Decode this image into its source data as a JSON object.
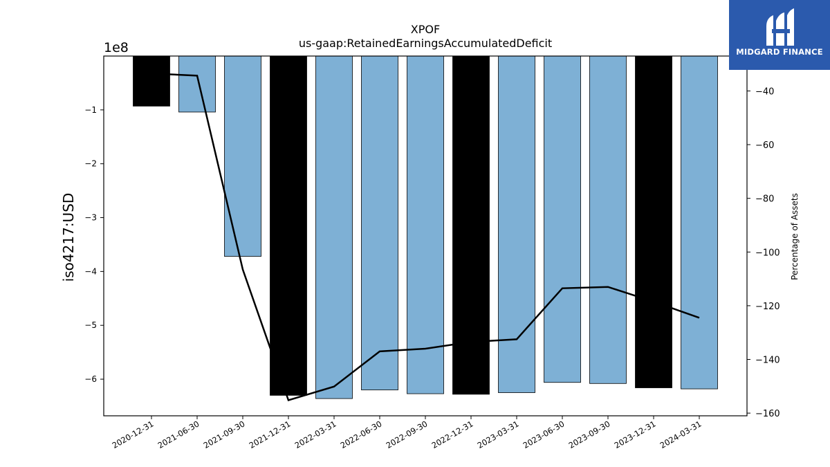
{
  "chart_data": {
    "type": "bar",
    "title": "XPOF",
    "subtitle": "us-gaap:RetainedEarningsAccumulatedDeficit",
    "ylabel": "iso4217:USD",
    "y2label": "Percentage of Assets",
    "offset_label": "1e8",
    "categories": [
      "2020-12-31",
      "2021-06-30",
      "2021-09-30",
      "2021-12-31",
      "2022-03-31",
      "2022-06-30",
      "2022-09-30",
      "2022-12-31",
      "2023-03-31",
      "2023-06-30",
      "2023-09-30",
      "2023-12-31",
      "2024-03-31"
    ],
    "values": [
      -93000000,
      -104000000,
      -372000000,
      -630000000,
      -636000000,
      -620000000,
      -627000000,
      -628000000,
      -625000000,
      -606000000,
      -608000000,
      -616000000,
      -618000000
    ],
    "bar_colors": [
      "#000000",
      "#7eb0d5",
      "#7eb0d5",
      "#000000",
      "#7eb0d5",
      "#7eb0d5",
      "#7eb0d5",
      "#000000",
      "#7eb0d5",
      "#7eb0d5",
      "#7eb0d5",
      "#000000",
      "#7eb0d5"
    ],
    "ylim": [
      -668000000,
      0
    ],
    "yticks": [
      -100000000,
      -200000000,
      -300000000,
      -400000000,
      -500000000,
      -600000000
    ],
    "ytick_labels": [
      "−1",
      "−2",
      "−3",
      "−4",
      "−5",
      "−6"
    ],
    "series": [
      {
        "name": "Percentage of Assets",
        "axis": "right",
        "values": [
          -33.5,
          -34.3,
          -106.5,
          -155.2,
          -150.1,
          -137.0,
          -136.0,
          -133.5,
          -132.5,
          -113.5,
          -113.0,
          -118.5,
          -124.5
        ]
      }
    ],
    "y2lim": [
      -161,
      -27
    ],
    "y2ticks": [
      -40,
      -60,
      -80,
      -100,
      -120,
      -140,
      -160
    ],
    "y2tick_labels": [
      "−40",
      "−60",
      "−80",
      "−100",
      "−120",
      "−140",
      "−160"
    ]
  },
  "logo": {
    "text": "MIDGARD FINANCE"
  }
}
